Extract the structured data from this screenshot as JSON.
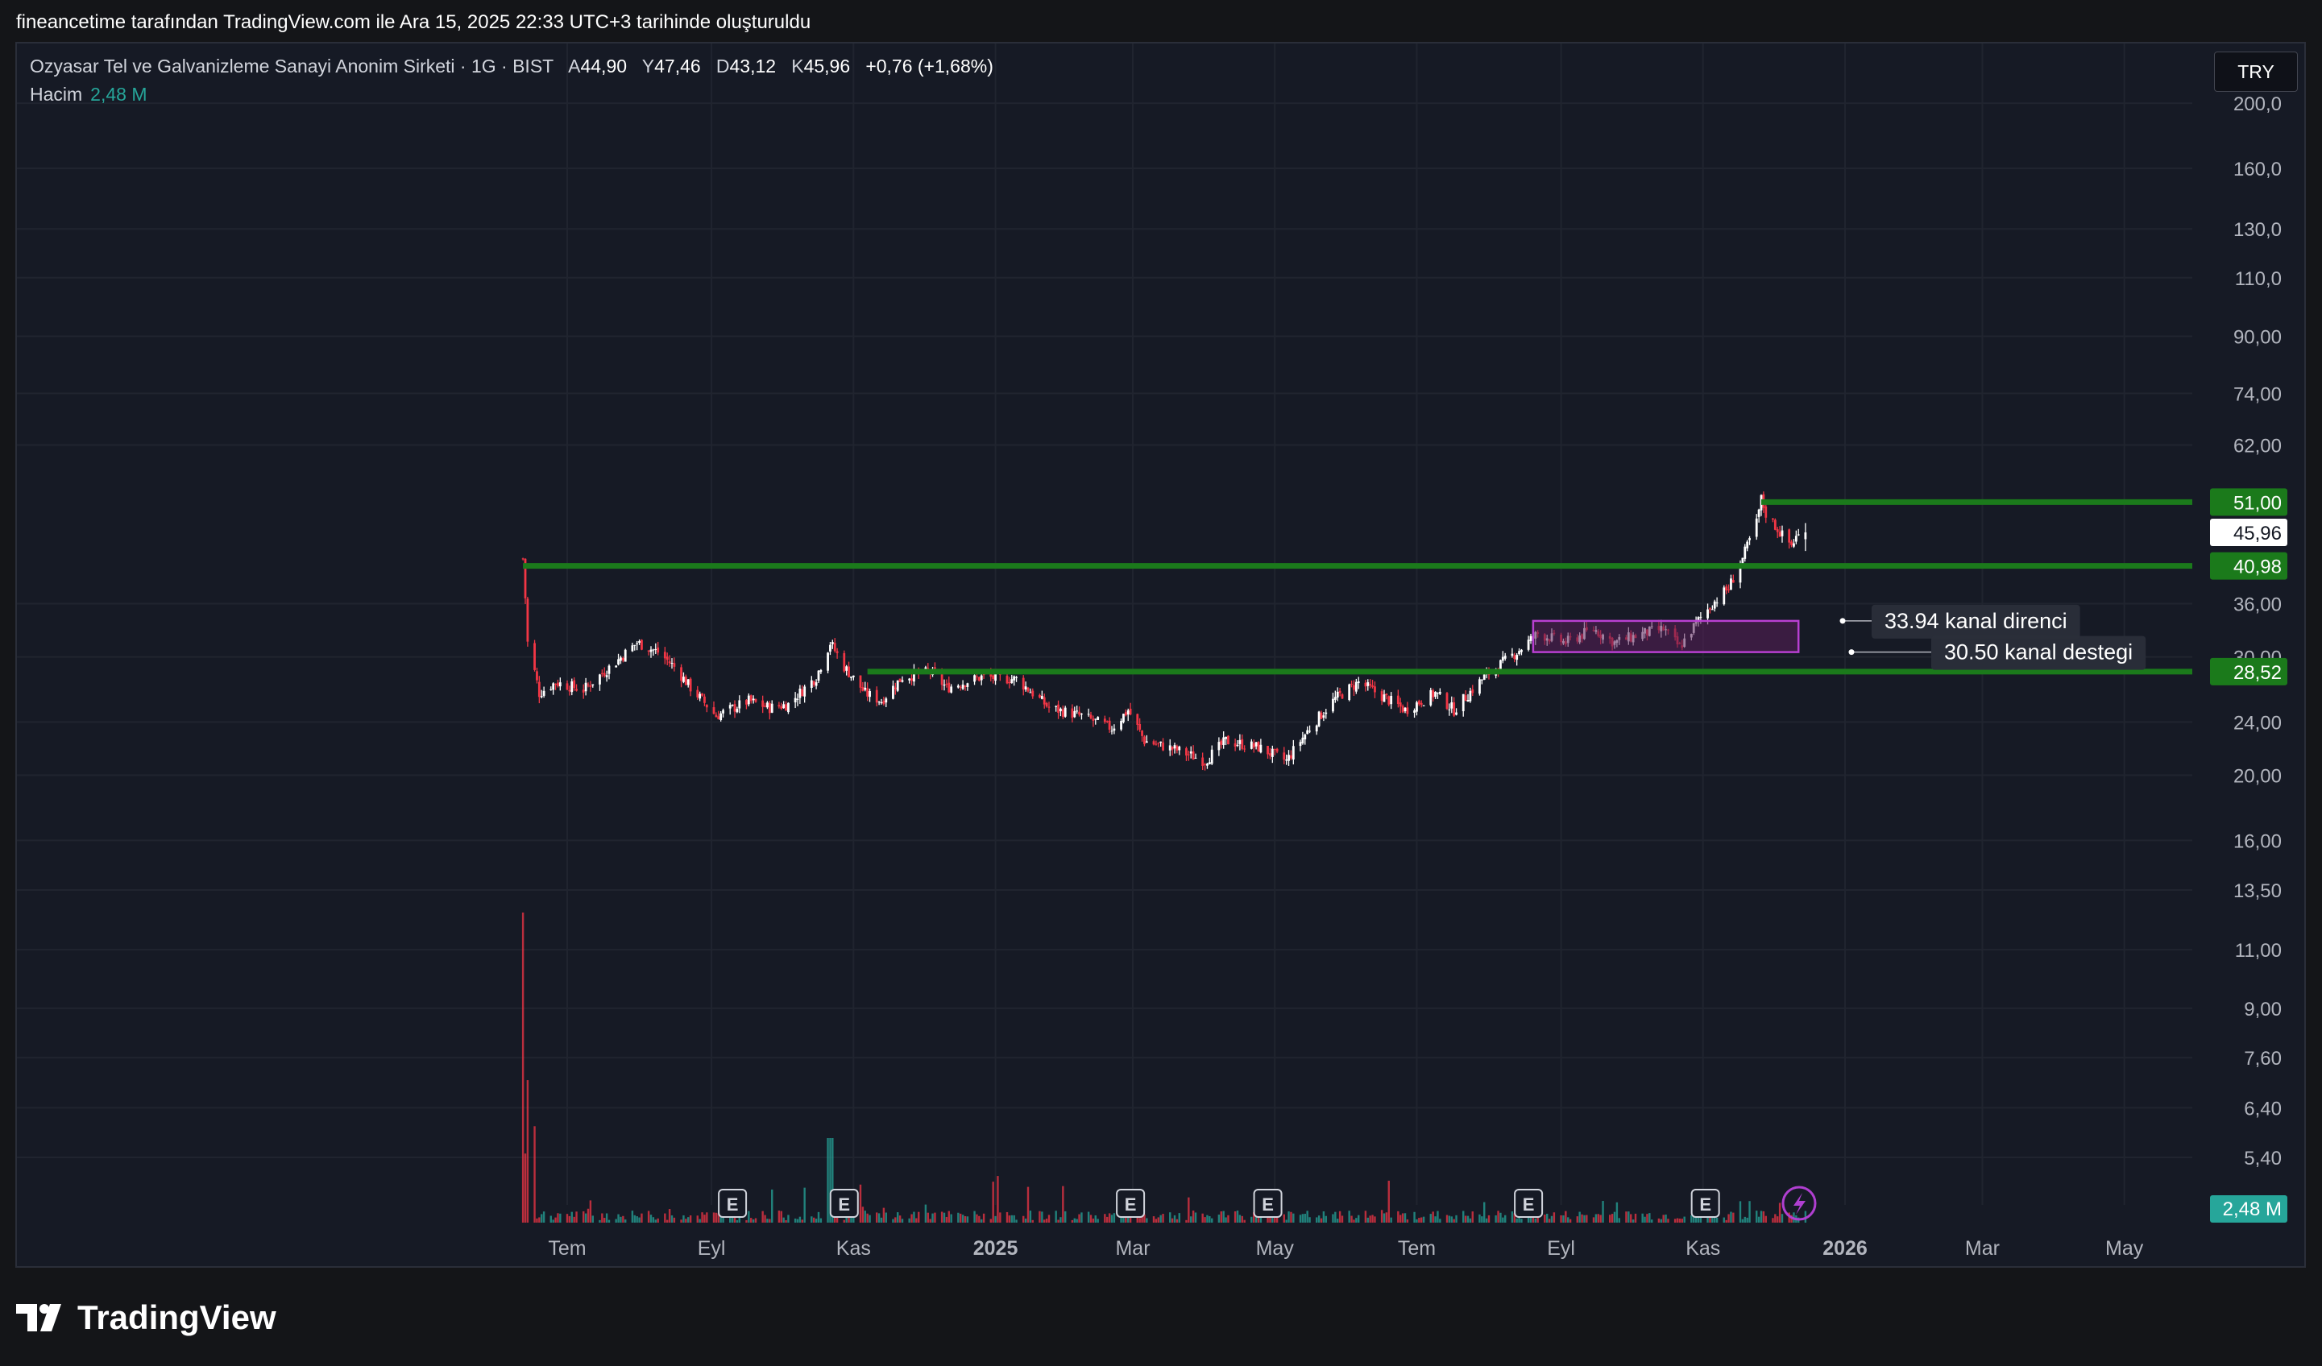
{
  "attribution": "fineancetime tarafından TradingView.com ile Ara 15, 2025 22:33 UTC+3 tarihinde oluşturuldu",
  "legend": {
    "symbol": "Ozyasar Tel ve Galvanizleme Sanayi Anonim Sirketi · 1G · BIST",
    "open_label": "A",
    "open": "44,90",
    "high_label": "Y",
    "high": "47,46",
    "low_label": "D",
    "low": "43,12",
    "close_label": "K",
    "close": "45,96",
    "change": "+0,76 (+1,68%)"
  },
  "volume_legend": {
    "label": "Hacim",
    "value": "2,48 M"
  },
  "currency_button": "TRY",
  "brand": "TradingView",
  "colors": {
    "background": "#161a25",
    "up": "#ffffff",
    "down": "#f23645",
    "volume_up": "#26a69a",
    "volume_down": "#f23645",
    "level_line": "#1b7a1b",
    "zone_border": "#b83fd1",
    "zone_fill": "#5a1f59",
    "last_price": "#ffffff",
    "volume_badge": "#26a69a"
  },
  "chart_data": {
    "type": "candlestick",
    "symbol": "OZYSR",
    "timeframe": "1G",
    "exchange": "BIST",
    "y_scale": "log",
    "y_ticks": [
      "200,0",
      "160,0",
      "130,0",
      "110,0",
      "90,00",
      "74,00",
      "62,00",
      "51,00",
      "45,96",
      "40,98",
      "36,00",
      "30,00",
      "28,52",
      "24,00",
      "20,00",
      "16,00",
      "13,50",
      "11,00",
      "9,00",
      "7,60",
      "6,40",
      "5,40"
    ],
    "y_tick_values": [
      200,
      160,
      130,
      110,
      90,
      74,
      62,
      36,
      30,
      24,
      20,
      16,
      13.5,
      11,
      9,
      7.6,
      6.4,
      5.4
    ],
    "x_ticks": [
      {
        "label": "Tem",
        "bold": false
      },
      {
        "label": "Eyl",
        "bold": false
      },
      {
        "label": "Kas",
        "bold": false
      },
      {
        "label": "2025",
        "bold": true
      },
      {
        "label": "Mar",
        "bold": false
      },
      {
        "label": "May",
        "bold": false
      },
      {
        "label": "Tem",
        "bold": false
      },
      {
        "label": "Eyl",
        "bold": false
      },
      {
        "label": "Kas",
        "bold": false
      },
      {
        "label": "2026",
        "bold": true
      },
      {
        "label": "Mar",
        "bold": false
      },
      {
        "label": "May",
        "bold": false
      }
    ],
    "x_tick_dates": [
      "2024-07-01",
      "2024-09-01",
      "2024-11-01",
      "2025-01-01",
      "2025-03-01",
      "2025-05-01",
      "2025-07-01",
      "2025-09-01",
      "2025-11-01",
      "2026-01-01",
      "2026-03-01",
      "2026-05-01"
    ],
    "price_path": [
      [
        "2024-06-12",
        42.0
      ],
      [
        "2024-06-14",
        31.5
      ],
      [
        "2024-06-19",
        26.5
      ],
      [
        "2024-06-26",
        27.5
      ],
      [
        "2024-07-08",
        26.8
      ],
      [
        "2024-07-22",
        29.5
      ],
      [
        "2024-07-31",
        31.5
      ],
      [
        "2024-08-09",
        30.5
      ],
      [
        "2024-08-16",
        29.0
      ],
      [
        "2024-08-23",
        27.0
      ],
      [
        "2024-09-03",
        24.5
      ],
      [
        "2024-09-17",
        25.8
      ],
      [
        "2024-09-26",
        25.2
      ],
      [
        "2024-10-04",
        25.5
      ],
      [
        "2024-10-16",
        28.0
      ],
      [
        "2024-10-22",
        31.5
      ],
      [
        "2024-10-28",
        29.0
      ],
      [
        "2024-11-06",
        26.5
      ],
      [
        "2024-11-13",
        25.8
      ],
      [
        "2024-11-22",
        28.0
      ],
      [
        "2024-12-04",
        28.5
      ],
      [
        "2024-12-11",
        27.0
      ],
      [
        "2024-12-26",
        28.0
      ],
      [
        "2025-01-10",
        27.8
      ],
      [
        "2025-01-24",
        25.2
      ],
      [
        "2025-02-07",
        24.5
      ],
      [
        "2025-02-20",
        23.5
      ],
      [
        "2025-02-27",
        25.0
      ],
      [
        "2025-03-06",
        22.5
      ],
      [
        "2025-03-20",
        21.8
      ],
      [
        "2025-04-01",
        21.0
      ],
      [
        "2025-04-10",
        22.5
      ],
      [
        "2025-04-24",
        22.0
      ],
      [
        "2025-05-06",
        21.0
      ],
      [
        "2025-05-16",
        23.5
      ],
      [
        "2025-05-27",
        26.0
      ],
      [
        "2025-06-06",
        27.5
      ],
      [
        "2025-06-18",
        26.0
      ],
      [
        "2025-06-26",
        25.0
      ],
      [
        "2025-07-09",
        26.5
      ],
      [
        "2025-07-17",
        25.0
      ],
      [
        "2025-07-30",
        28.0
      ],
      [
        "2025-08-13",
        30.5
      ],
      [
        "2025-08-22",
        32.5
      ],
      [
        "2025-09-03",
        31.5
      ],
      [
        "2025-09-15",
        33.0
      ],
      [
        "2025-09-24",
        31.5
      ],
      [
        "2025-10-06",
        32.5
      ],
      [
        "2025-10-15",
        33.0
      ],
      [
        "2025-10-22",
        31.0
      ],
      [
        "2025-10-30",
        34.0
      ],
      [
        "2025-11-05",
        36.0
      ],
      [
        "2025-11-12",
        38.0
      ],
      [
        "2025-11-18",
        42.0
      ],
      [
        "2025-11-24",
        47.5
      ],
      [
        "2025-11-26",
        51.5
      ],
      [
        "2025-11-28",
        49.0
      ],
      [
        "2025-12-02",
        47.0
      ],
      [
        "2025-12-05",
        45.5
      ],
      [
        "2025-12-09",
        44.0
      ],
      [
        "2025-12-11",
        45.2
      ],
      [
        "2025-12-15",
        45.96
      ]
    ],
    "last_ohlc": {
      "open": 44.9,
      "high": 47.46,
      "low": 43.12,
      "close": 45.96
    },
    "horizontal_levels": [
      {
        "price": 51.0,
        "label": "51,00",
        "start": "2025-11-26"
      },
      {
        "price": 40.98,
        "label": "40,98",
        "start": "2024-06-12"
      },
      {
        "price": 28.52,
        "label": "28,52",
        "start": "2024-11-07"
      }
    ],
    "zone": {
      "top": 33.94,
      "bottom": 30.5,
      "start": "2025-08-20",
      "end": "2025-12-12"
    },
    "annotations": [
      {
        "text": "33.94 kanal direnci",
        "price": 33.94
      },
      {
        "text": "30.50 kanal destegi",
        "price": 30.5
      }
    ],
    "volume": {
      "last": "2,48 M",
      "peak_date": "2024-06-12"
    },
    "earnings_markers": [
      "2024-09-10",
      "2024-10-28",
      "2025-02-28",
      "2025-04-28",
      "2025-08-18",
      "2025-11-02"
    ],
    "earnings_label": "E",
    "grid": true
  }
}
